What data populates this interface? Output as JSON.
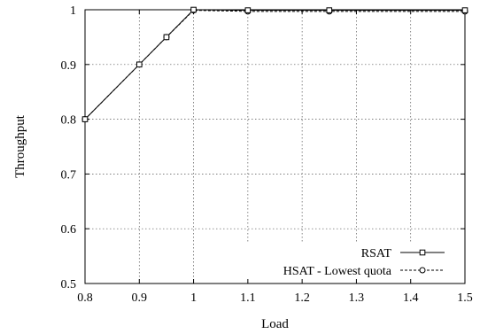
{
  "chart_data": {
    "type": "line",
    "title": "",
    "xlabel": "Load",
    "ylabel": "Throughput",
    "xlim": [
      0.8,
      1.5
    ],
    "ylim": [
      0.5,
      1.0
    ],
    "xticks": [
      "0.8",
      "0.9",
      "1",
      "1.1",
      "1.2",
      "1.3",
      "1.4",
      "1.5"
    ],
    "yticks": [
      "0.5",
      "0.6",
      "0.7",
      "0.8",
      "0.9",
      "1"
    ],
    "grid": true,
    "legend_position": "bottom-right",
    "series": [
      {
        "name": "RSAT",
        "marker": "square",
        "line_style": "solid",
        "x": [
          0.8,
          0.9,
          0.95,
          1.0,
          1.1,
          1.25,
          1.5
        ],
        "y": [
          0.8,
          0.9,
          0.95,
          1.0,
          0.999,
          0.999,
          0.999
        ]
      },
      {
        "name": "HSAT - Lowest quota",
        "marker": "circle",
        "line_style": "dashed",
        "x": [
          0.8,
          0.9,
          0.95,
          1.0,
          1.1,
          1.25,
          1.5
        ],
        "y": [
          0.8,
          0.9,
          0.95,
          0.999,
          0.997,
          0.997,
          0.997
        ]
      }
    ]
  }
}
